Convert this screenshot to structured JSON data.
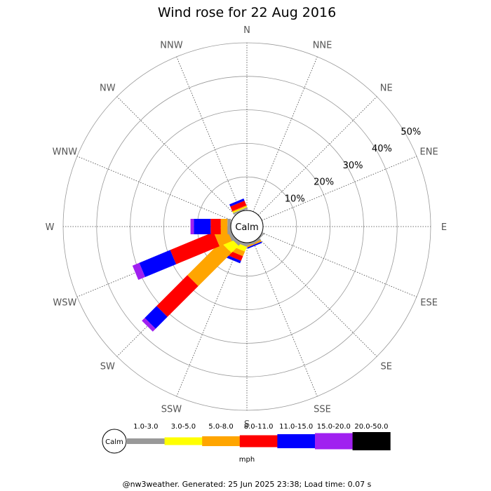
{
  "chart_data": {
    "type": "windrose",
    "title": "Wind rose for 22 Aug 2016",
    "unit": "mph",
    "calm_label": "Calm",
    "directions": [
      "N",
      "NNE",
      "NE",
      "ENE",
      "E",
      "ESE",
      "SE",
      "SSE",
      "S",
      "SSW",
      "SW",
      "WSW",
      "W",
      "WNW",
      "NW",
      "NNW"
    ],
    "radial_ticks": [
      "10%",
      "20%",
      "30%",
      "40%",
      "50%"
    ],
    "radial_values": [
      10,
      20,
      30,
      40,
      50
    ],
    "rmax": 50,
    "grid": true,
    "bins": [
      {
        "label": "1.0-3.0",
        "color": "#999999"
      },
      {
        "label": "3.0-5.0",
        "color": "#ffff00"
      },
      {
        "label": "5.0-8.0",
        "color": "#ffa500"
      },
      {
        "label": "8.0-11.0",
        "color": "#ff0000"
      },
      {
        "label": "11.0-15.0",
        "color": "#0000ff"
      },
      {
        "label": "15.0-20.0",
        "color": "#a020f0"
      },
      {
        "label": "20.0-50.0",
        "color": "#000000"
      }
    ],
    "series": [
      {
        "direction": "NNW",
        "values": [
          0.5,
          0.3,
          0.3,
          1.5,
          0.7,
          0,
          0
        ]
      },
      {
        "direction": "SSE",
        "values": [
          0.5,
          0,
          0.5,
          0,
          0.4,
          0,
          0
        ]
      },
      {
        "direction": "SE",
        "values": [
          0.4,
          0,
          0,
          0,
          0,
          0,
          0
        ]
      },
      {
        "direction": "S",
        "values": [
          0.4,
          0,
          0,
          0,
          0,
          0,
          0
        ]
      },
      {
        "direction": "SSW",
        "values": [
          0.8,
          1.5,
          1.5,
          1.5,
          0.8,
          0,
          0
        ]
      },
      {
        "direction": "SW",
        "values": [
          1,
          3,
          14,
          13,
          5,
          1.2,
          0
        ]
      },
      {
        "direction": "WSW",
        "values": [
          1,
          0,
          4,
          14,
          10,
          2.2,
          0
        ]
      },
      {
        "direction": "W",
        "values": [
          1,
          0,
          2,
          3,
          5,
          1,
          0
        ]
      }
    ]
  },
  "footer": "@nw3weather. Generated: 25 Jun 2025 23:38; Load time: 0.07 s"
}
